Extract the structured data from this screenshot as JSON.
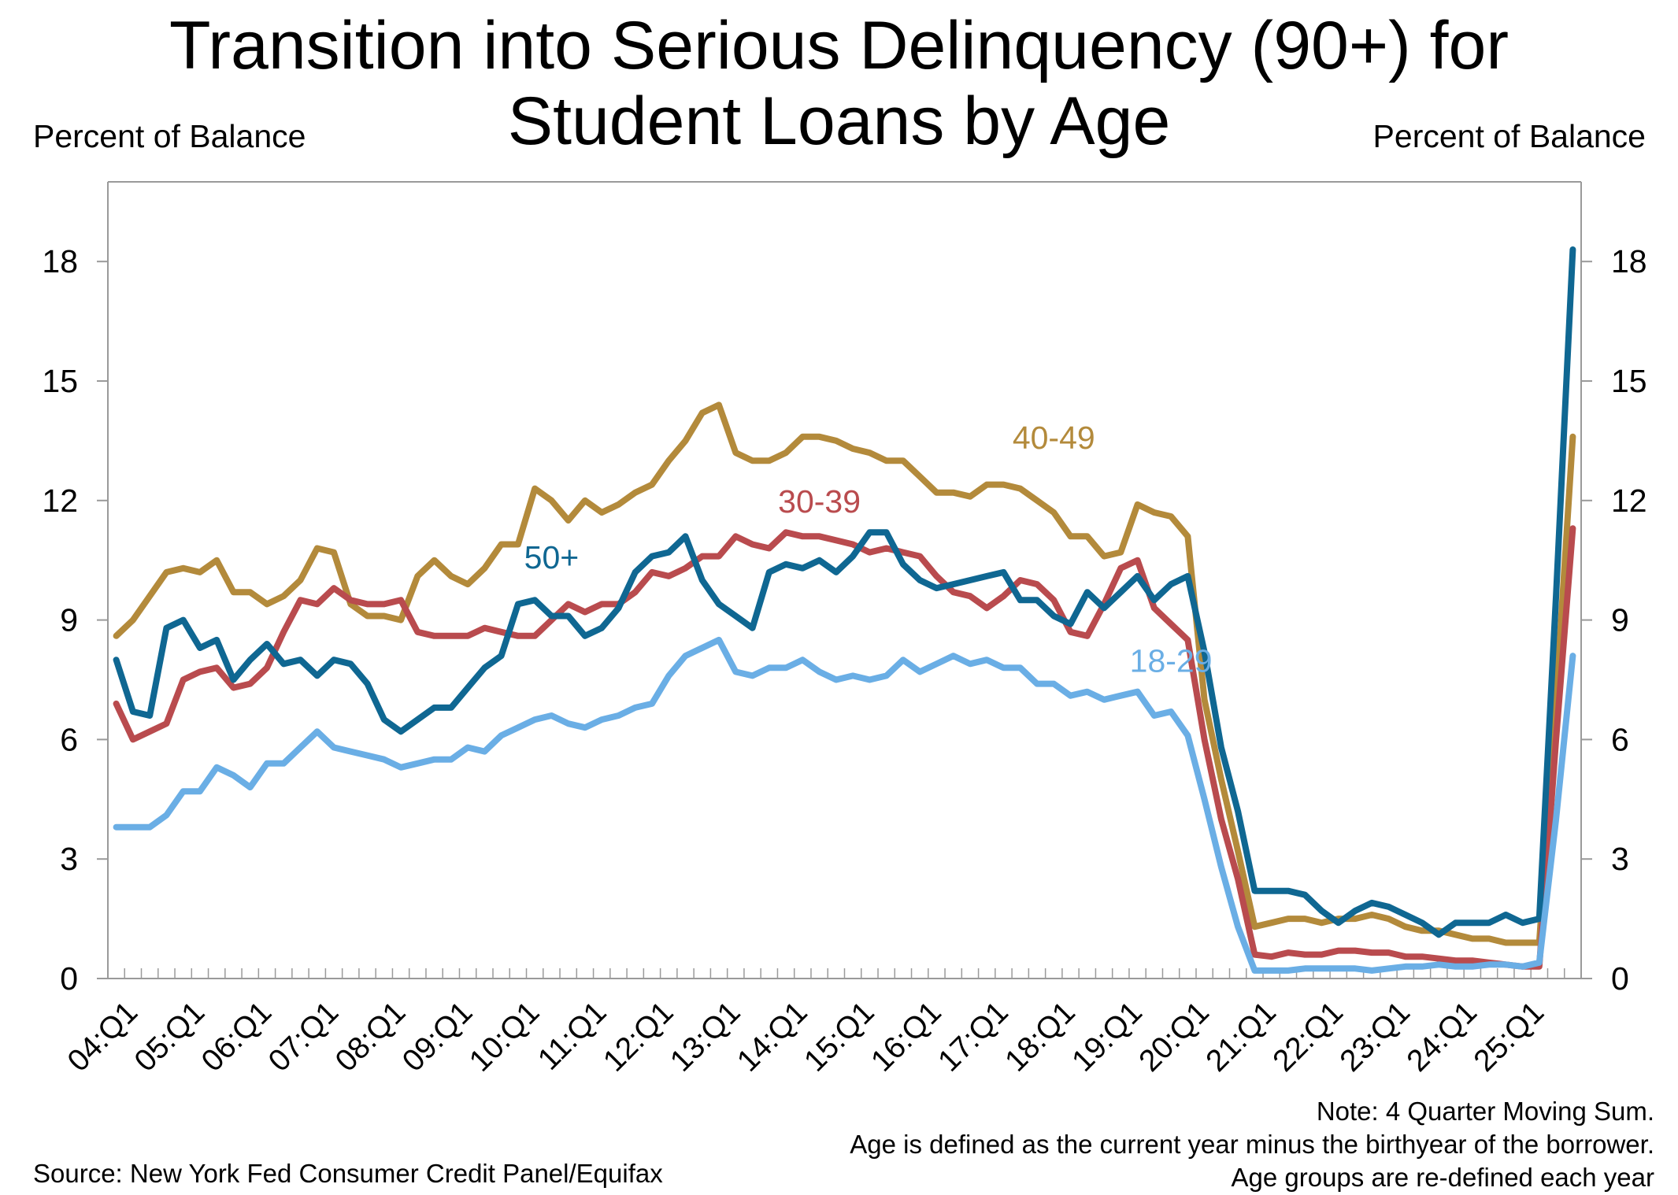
{
  "title_lines": [
    "Transition into Serious Delinquency (90+) for",
    "Student Loans by Age"
  ],
  "axis_unit_left": "Percent of Balance",
  "axis_unit_right": "Percent of Balance",
  "notes": [
    "Note: 4 Quarter Moving Sum.",
    "Age is defined as the current year minus the birthyear of the borrower.",
    "Age groups are re-defined each year"
  ],
  "source": "Source: New York Fed Consumer Credit Panel/Equifax",
  "chart_data": {
    "type": "line",
    "title": "Transition into Serious Delinquency (90+) for Student Loans by Age",
    "ylabel": "Percent of Balance",
    "ylim": [
      0,
      20
    ],
    "yticks": [
      0,
      3,
      6,
      9,
      12,
      15,
      18
    ],
    "x_start": "04:Q1",
    "x_end": "25:Q2",
    "x_tick_labels": [
      "04:Q1",
      "05:Q1",
      "06:Q1",
      "07:Q1",
      "08:Q1",
      "09:Q1",
      "10:Q1",
      "11:Q1",
      "12:Q1",
      "13:Q1",
      "14:Q1",
      "15:Q1",
      "16:Q1",
      "17:Q1",
      "18:Q1",
      "19:Q1",
      "20:Q1",
      "21:Q1",
      "22:Q1",
      "23:Q1",
      "24:Q1",
      "25:Q1"
    ],
    "grid": false,
    "legend": "inline labels",
    "series": [
      {
        "name": "40-49",
        "color": "#b38a3b",
        "values": [
          8.6,
          9.0,
          9.6,
          10.2,
          10.3,
          10.2,
          10.5,
          9.7,
          9.7,
          9.4,
          9.6,
          10.0,
          10.8,
          10.7,
          9.4,
          9.1,
          9.1,
          9.0,
          10.1,
          10.5,
          10.1,
          9.9,
          10.3,
          10.9,
          10.9,
          12.3,
          12.0,
          11.5,
          12.0,
          11.7,
          11.9,
          12.2,
          12.4,
          13.0,
          13.5,
          14.2,
          14.4,
          13.2,
          13.0,
          13.0,
          13.2,
          13.6,
          13.6,
          13.5,
          13.3,
          13.2,
          13.0,
          13.0,
          12.6,
          12.2,
          12.2,
          12.1,
          12.4,
          12.4,
          12.3,
          12.0,
          11.7,
          11.1,
          11.1,
          10.6,
          10.7,
          11.9,
          11.7,
          11.6,
          11.1,
          7.0,
          5.0,
          3.2,
          1.3,
          1.4,
          1.5,
          1.5,
          1.4,
          1.5,
          1.5,
          1.6,
          1.5,
          1.3,
          1.2,
          1.2,
          1.1,
          1.0,
          1.0,
          0.9,
          0.9,
          0.9,
          7.0,
          13.6
        ]
      },
      {
        "name": "30-39",
        "color": "#b94b4e",
        "values": [
          6.9,
          6.0,
          6.2,
          6.4,
          7.5,
          7.7,
          7.8,
          7.3,
          7.4,
          7.8,
          8.7,
          9.5,
          9.4,
          9.8,
          9.5,
          9.4,
          9.4,
          9.5,
          8.7,
          8.6,
          8.6,
          8.6,
          8.8,
          8.7,
          8.6,
          8.6,
          9.0,
          9.4,
          9.2,
          9.4,
          9.4,
          9.7,
          10.2,
          10.1,
          10.3,
          10.6,
          10.6,
          11.1,
          10.9,
          10.8,
          11.2,
          11.1,
          11.1,
          11.0,
          10.9,
          10.7,
          10.8,
          10.7,
          10.6,
          10.1,
          9.7,
          9.6,
          9.3,
          9.6,
          10.0,
          9.9,
          9.5,
          8.7,
          8.6,
          9.4,
          10.3,
          10.5,
          9.3,
          8.9,
          8.5,
          6.0,
          4.0,
          2.5,
          0.6,
          0.55,
          0.65,
          0.6,
          0.6,
          0.7,
          0.7,
          0.65,
          0.65,
          0.55,
          0.55,
          0.5,
          0.45,
          0.45,
          0.4,
          0.35,
          0.3,
          0.3,
          6.0,
          11.3
        ]
      },
      {
        "name": "50+",
        "color": "#0f6792",
        "values": [
          8.0,
          6.7,
          6.6,
          8.8,
          9.0,
          8.3,
          8.5,
          7.5,
          8.0,
          8.4,
          7.9,
          8.0,
          7.6,
          8.0,
          7.9,
          7.4,
          6.5,
          6.2,
          6.5,
          6.8,
          6.8,
          7.3,
          7.8,
          8.1,
          9.4,
          9.5,
          9.1,
          9.1,
          8.6,
          8.8,
          9.3,
          10.2,
          10.6,
          10.7,
          11.1,
          10.0,
          9.4,
          9.1,
          8.8,
          10.2,
          10.4,
          10.3,
          10.5,
          10.2,
          10.6,
          11.2,
          11.2,
          10.4,
          10.0,
          9.8,
          9.9,
          10.0,
          10.1,
          10.2,
          9.5,
          9.5,
          9.1,
          8.9,
          9.7,
          9.3,
          9.7,
          10.1,
          9.5,
          9.9,
          10.1,
          8.2,
          5.8,
          4.2,
          2.2,
          2.2,
          2.2,
          2.1,
          1.7,
          1.4,
          1.7,
          1.9,
          1.8,
          1.6,
          1.4,
          1.1,
          1.4,
          1.4,
          1.4,
          1.6,
          1.4,
          1.5,
          9.6,
          18.3
        ]
      },
      {
        "name": "18-29",
        "color": "#6aaee5",
        "values": [
          3.8,
          3.8,
          3.8,
          4.1,
          4.7,
          4.7,
          5.3,
          5.1,
          4.8,
          5.4,
          5.4,
          5.8,
          6.2,
          5.8,
          5.7,
          5.6,
          5.5,
          5.3,
          5.4,
          5.5,
          5.5,
          5.8,
          5.7,
          6.1,
          6.3,
          6.5,
          6.6,
          6.4,
          6.3,
          6.5,
          6.6,
          6.8,
          6.9,
          7.6,
          8.1,
          8.3,
          8.5,
          7.7,
          7.6,
          7.8,
          7.8,
          8.0,
          7.7,
          7.5,
          7.6,
          7.5,
          7.6,
          8.0,
          7.7,
          7.9,
          8.1,
          7.9,
          8.0,
          7.8,
          7.8,
          7.4,
          7.4,
          7.1,
          7.2,
          7.0,
          7.1,
          7.2,
          6.6,
          6.7,
          6.1,
          4.5,
          2.8,
          1.3,
          0.2,
          0.2,
          0.2,
          0.25,
          0.25,
          0.25,
          0.25,
          0.2,
          0.25,
          0.3,
          0.3,
          0.35,
          0.3,
          0.3,
          0.35,
          0.35,
          0.3,
          0.4,
          4.0,
          8.1
        ]
      }
    ],
    "annotations": [
      {
        "text": "40-49",
        "series": "40-49",
        "x_index": 56,
        "y": 13.3
      },
      {
        "text": "30-39",
        "series": "30-39",
        "x_index": 42,
        "y": 11.7
      },
      {
        "text": "50+",
        "series": "50+",
        "x_index": 26,
        "y": 10.3
      },
      {
        "text": "18-29",
        "series": "18-29",
        "x_index": 63,
        "y": 7.7
      }
    ]
  }
}
